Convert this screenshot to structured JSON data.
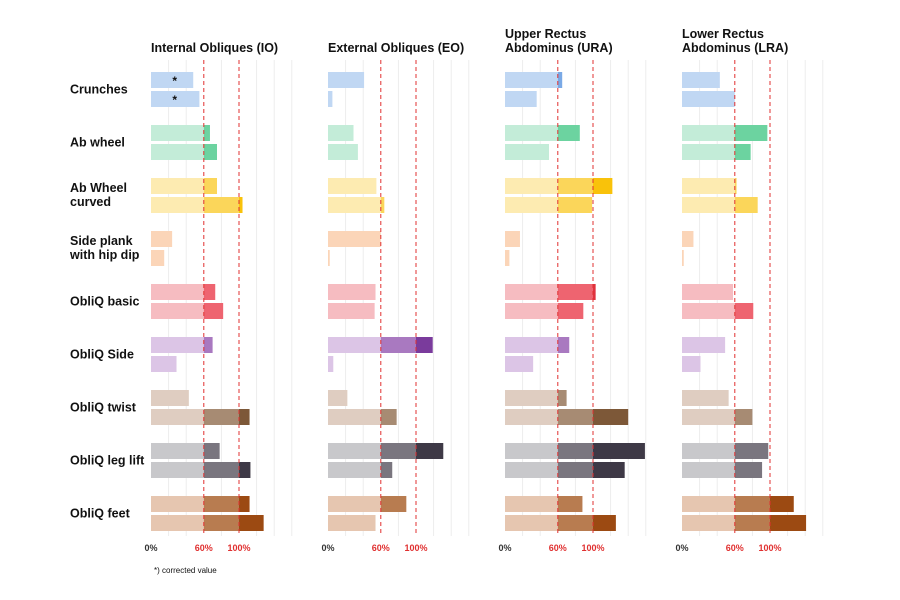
{
  "chart_data": {
    "type": "bar",
    "orientation": "horizontal",
    "panels": [
      {
        "title": [
          "Internal Obliques (IO)"
        ]
      },
      {
        "title": [
          "External Obliques (EO)"
        ]
      },
      {
        "title": [
          "Upper Rectus",
          "Abdominus (URA)"
        ]
      },
      {
        "title": [
          "Lower Rectus",
          "Abdominus (LRA)"
        ]
      }
    ],
    "x_ticks": [
      "0%",
      "60%",
      "100%"
    ],
    "x_tick_values": [
      0,
      60,
      100
    ],
    "xlim": [
      0,
      160
    ],
    "reference_lines": [
      60,
      100
    ],
    "footnote": "*) corrected value",
    "marker": "*",
    "exercises": [
      {
        "label": [
          "Crunches"
        ],
        "colors": [
          "#c0d7f3",
          "#7aa9e6",
          "#4f8ee0"
        ],
        "values": [
          [
            48,
            41,
            65,
            43
          ],
          [
            55,
            5,
            36,
            60
          ]
        ],
        "starred": [
          [
            true,
            false,
            false,
            false
          ],
          [
            true,
            false,
            false,
            false
          ]
        ]
      },
      {
        "label": [
          "Ab wheel"
        ],
        "colors": [
          "#c3ecd8",
          "#6cd3a0",
          "#3fbf7f"
        ],
        "values": [
          [
            67,
            29,
            85,
            97
          ],
          [
            75,
            34,
            50,
            78
          ]
        ]
      },
      {
        "label": [
          "Ab Wheel",
          "curved"
        ],
        "colors": [
          "#fdebb1",
          "#fbd65a",
          "#f9c20a"
        ],
        "values": [
          [
            75,
            55,
            122,
            62
          ],
          [
            104,
            64,
            99,
            86
          ]
        ]
      },
      {
        "label": [
          "Side plank",
          "with hip dip"
        ],
        "colors": [
          "#fbd5b8",
          "#f7b48a",
          "#f0955c"
        ],
        "values": [
          [
            24,
            60,
            17,
            13
          ],
          [
            15,
            2,
            5,
            2
          ]
        ]
      },
      {
        "label": [
          "ObliQ basic"
        ],
        "colors": [
          "#f6bcc1",
          "#ee6470",
          "#e0323f"
        ],
        "values": [
          [
            73,
            54,
            103,
            58
          ],
          [
            82,
            53,
            89,
            81
          ]
        ]
      },
      {
        "label": [
          "ObliQ Side"
        ],
        "colors": [
          "#dcc5e6",
          "#a979c0",
          "#7a3b9c"
        ],
        "values": [
          [
            70,
            119,
            73,
            49
          ],
          [
            29,
            6,
            32,
            21
          ]
        ]
      },
      {
        "label": [
          "ObliQ twist"
        ],
        "colors": [
          "#dfcdc1",
          "#a78b73",
          "#7d5838"
        ],
        "values": [
          [
            43,
            22,
            70,
            53
          ],
          [
            112,
            78,
            140,
            80
          ]
        ]
      },
      {
        "label": [
          "ObliQ leg lift"
        ],
        "colors": [
          "#c8c8cb",
          "#7a767f",
          "#3e3946"
        ],
        "values": [
          [
            78,
            131,
            159,
            98
          ],
          [
            113,
            73,
            136,
            91
          ]
        ]
      },
      {
        "label": [
          "ObliQ feet"
        ],
        "colors": [
          "#e6c6b0",
          "#b87c50",
          "#9c4a12"
        ],
        "values": [
          [
            112,
            89,
            88,
            127
          ],
          [
            128,
            54,
            126,
            141
          ]
        ]
      }
    ]
  }
}
